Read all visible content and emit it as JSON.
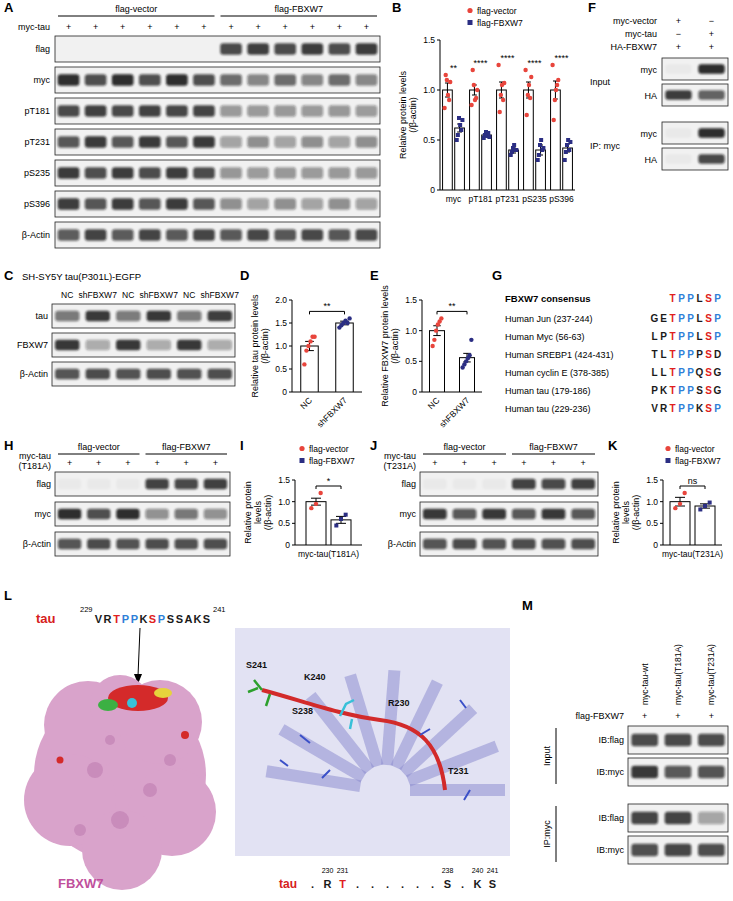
{
  "chart_data": [
    {
      "type": "bar",
      "panel": "B",
      "ylabel": "Relative protein levels (/β-actin)",
      "categories": [
        "myc",
        "pT181",
        "pT231",
        "pS235",
        "pS396"
      ],
      "series": [
        {
          "name": "flag-vector",
          "color": "#e8453c",
          "marker": "circle",
          "values": [
            1,
            1,
            1,
            1,
            1
          ],
          "errors": [
            0.07,
            0.05,
            0.08,
            0.08,
            0.09
          ],
          "points": [
            [
              0.82,
              1.15,
              1.1,
              0.95,
              0.9,
              1.08
            ],
            [
              0.85,
              1.2,
              1.05,
              0.9,
              0.92,
              1.0
            ],
            [
              1.25,
              0.78,
              0.95,
              1.05,
              0.9,
              1.07
            ],
            [
              1.2,
              0.75,
              0.95,
              1.05,
              0.92,
              1.13
            ],
            [
              1.25,
              0.7,
              0.9,
              1.0,
              1.05,
              1.1
            ]
          ]
        },
        {
          "name": "flag-FBXW7",
          "color": "#2b2e83",
          "marker": "square",
          "values": [
            0.62,
            0.55,
            0.4,
            0.4,
            0.42
          ],
          "errors": [
            0.04,
            0.02,
            0.03,
            0.05,
            0.04
          ],
          "points": [
            [
              0.5,
              0.55,
              0.72,
              0.65,
              0.6,
              0.7
            ],
            [
              0.52,
              0.55,
              0.58,
              0.54,
              0.57,
              0.53
            ],
            [
              0.35,
              0.38,
              0.42,
              0.45,
              0.4,
              0.4
            ],
            [
              0.3,
              0.35,
              0.45,
              0.5,
              0.4,
              0.42
            ],
            [
              0.3,
              0.38,
              0.45,
              0.5,
              0.4,
              0.48
            ]
          ]
        }
      ],
      "annotations": [
        "**",
        "****",
        "****",
        "****",
        "****"
      ],
      "ylim": [
        0,
        1.5
      ],
      "yticks": [
        0,
        0.5,
        {
          "value": 1,
          "label": "1.0"
        },
        1.5
      ],
      "legend": "top"
    },
    {
      "type": "bar",
      "panel": "D",
      "ylabel": "Relative tau protein levels (/β-actin)",
      "categories": [
        "NC",
        "shFBXW7"
      ],
      "values": [
        1.0,
        1.5
      ],
      "colors": [
        "#e8453c",
        "#2b2e83"
      ],
      "marker": "circle",
      "errors": [
        0.1,
        0.04
      ],
      "points": [
        [
          0.6,
          0.9,
          1.0,
          1.1,
          1.2,
          1.2
        ],
        [
          1.4,
          1.45,
          1.5,
          1.55,
          1.5,
          1.6
        ]
      ],
      "annotations": [
        "**"
      ],
      "ylim": [
        0,
        2
      ],
      "yticks": [
        0,
        0.5,
        {
          "value": 1,
          "label": "1.0"
        },
        1.5,
        {
          "value": 2,
          "label": "2.0"
        }
      ]
    },
    {
      "type": "bar",
      "panel": "E",
      "ylabel": "Relative FBXW7 protein levels (/β-actin)",
      "categories": [
        "NC",
        "shFBXW7"
      ],
      "values": [
        1.0,
        0.56
      ],
      "colors": [
        "#e8453c",
        "#2b2e83"
      ],
      "marker": "circle",
      "errors": [
        0.08,
        0.07
      ],
      "points": [
        [
          0.75,
          0.85,
          1.0,
          1.1,
          1.15,
          1.2
        ],
        [
          0.4,
          0.45,
          0.5,
          0.55,
          0.6,
          0.85
        ]
      ],
      "annotations": [
        "**"
      ],
      "ylim": [
        0,
        1.5
      ],
      "yticks": [
        0,
        0.5,
        {
          "value": 1,
          "label": "1.0"
        },
        1.5
      ]
    },
    {
      "type": "bar",
      "panel": "I",
      "ylabel": "Relative protein levels (/β-actin)",
      "categories": [
        "myc-tau(T181A)"
      ],
      "series": [
        {
          "name": "flag-vector",
          "color": "#e8453c",
          "marker": "circle",
          "values": [
            1.0
          ],
          "errors": [
            0.08
          ],
          "points": [
            [
              0.85,
              0.95,
              1.2
            ]
          ]
        },
        {
          "name": "flag-FBXW7",
          "color": "#2b2e83",
          "marker": "square",
          "values": [
            0.58
          ],
          "errors": [
            0.08
          ],
          "points": [
            [
              0.45,
              0.6,
              0.7
            ]
          ]
        }
      ],
      "annotations": [
        "*"
      ],
      "ylim": [
        0,
        1.5
      ],
      "yticks": [
        0,
        0.5,
        {
          "value": 1,
          "label": "1.0"
        },
        1.5
      ],
      "legend": "top"
    },
    {
      "type": "bar",
      "panel": "K",
      "ylabel": "Relative protein levels (/β-actin)",
      "categories": [
        "myc-tau(T231A)"
      ],
      "series": [
        {
          "name": "flag-vector",
          "color": "#e8453c",
          "marker": "circle",
          "values": [
            1.0
          ],
          "errors": [
            0.1
          ],
          "points": [
            [
              0.85,
              0.95,
              1.2
            ]
          ]
        },
        {
          "name": "flag-FBXW7",
          "color": "#2b2e83",
          "marker": "square",
          "values": [
            0.9
          ],
          "errors": [
            0.05
          ],
          "points": [
            [
              0.82,
              0.9,
              0.98
            ]
          ]
        }
      ],
      "annotations": [
        "ns"
      ],
      "ylim": [
        0,
        1.5
      ],
      "yticks": [
        0,
        0.5,
        {
          "value": 1,
          "label": "1.0"
        },
        1.5
      ],
      "legend": "top"
    }
  ],
  "panels": {
    "A": {
      "panel": "A",
      "groups": [
        {
          "label": "flag-vector",
          "lanes": 6
        },
        {
          "label": "flag-FBXW7",
          "lanes": 6
        }
      ],
      "treatment": {
        "label": "myc-tau",
        "marks": [
          "+",
          "+",
          "+",
          "+",
          "+",
          "+",
          "+",
          "+",
          "+",
          "+",
          "+",
          "+"
        ]
      },
      "rows": [
        "flag",
        "myc",
        "pT181",
        "pT231",
        "pS235",
        "pS396",
        "β-Actin"
      ]
    },
    "C": {
      "panel": "C",
      "title": "SH-SY5Y tau(P301L)-EGFP",
      "lanes": [
        "NC",
        "shFBXW7",
        "NC",
        "shFBXW7",
        "NC",
        "shFBXW7"
      ],
      "rows": [
        "tau",
        "FBXW7",
        "β-Actin"
      ]
    },
    "F": {
      "panel": "F",
      "conditions": [
        {
          "label": "myc-vector",
          "marks": [
            "+",
            "−"
          ]
        },
        {
          "label": "myc-tau",
          "marks": [
            "−",
            "+"
          ]
        },
        {
          "label": "HA-FBXW7",
          "marks": [
            "+",
            "+"
          ]
        }
      ],
      "sections": [
        {
          "label": "Input",
          "rows": [
            "myc",
            "HA"
          ]
        },
        {
          "label": "IP: myc",
          "rows": [
            "myc",
            "HA"
          ]
        }
      ]
    },
    "G": {
      "panel": "G",
      "consensus": {
        "label": "FBXW7 consensus",
        "sequence": "TPPLSP"
      },
      "rows": [
        {
          "label": "Human Jun (237-244)",
          "sequence": "GETPPLSP"
        },
        {
          "label": "Human Myc (56-63)",
          "sequence": "LPTPPLSP"
        },
        {
          "label": "Human SREBP1 (424-431)",
          "sequence": "TLTPPPSD"
        },
        {
          "label": "Human cyclin E (378-385)",
          "sequence": "LLTPPQSG"
        },
        {
          "label": "Human tau (179-186)",
          "sequence": "PKTPPSSG"
        },
        {
          "label": "Human tau (229-236)",
          "sequence": "VRTPPKSP"
        }
      ]
    },
    "H": {
      "panel": "H",
      "groups": [
        {
          "label": "flag-vector",
          "lanes": 3
        },
        {
          "label": "flag-FBXW7",
          "lanes": 3
        }
      ],
      "treatment": {
        "label": "myc-tau(T181A)",
        "marks": [
          "+",
          "+",
          "+",
          "+",
          "+",
          "+"
        ]
      },
      "rows": [
        "flag",
        "myc",
        "β-Actin"
      ]
    },
    "J": {
      "panel": "J",
      "groups": [
        {
          "label": "flag-vector",
          "lanes": 3
        },
        {
          "label": "flag-FBXW7",
          "lanes": 3
        }
      ],
      "treatment": {
        "label": "myc-tau(T231A)",
        "marks": [
          "+",
          "+",
          "+",
          "+",
          "+",
          "+"
        ]
      },
      "rows": [
        "flag",
        "myc",
        "β-Actin"
      ]
    },
    "L": {
      "panel": "L",
      "protein": "tau",
      "peptide": {
        "start": 229,
        "sequence": "VRTPPKSPSSAKS",
        "end": 241
      },
      "receptor": "FBXW7",
      "residues": [
        "S241",
        "K240",
        "S238",
        "R230",
        "T231"
      ],
      "alignment": {
        "label": "tau",
        "sequence": ".RT......S.KS",
        "numbers": [
          230,
          231,
          238,
          240,
          241
        ]
      }
    },
    "M": {
      "panel": "M",
      "lanes": [
        "myc-tau-wt",
        "myc-tau(T181A)",
        "myc-tau(T231A)"
      ],
      "treatment": {
        "label": "flag-FBXW7",
        "marks": [
          "+",
          "+",
          "+"
        ]
      },
      "sections": [
        {
          "label": "Input",
          "rows": [
            "IB:flag",
            "IB:myc"
          ]
        },
        {
          "label": "IP:myc",
          "rows": [
            "IB:flag",
            "IB:myc"
          ]
        }
      ]
    }
  }
}
